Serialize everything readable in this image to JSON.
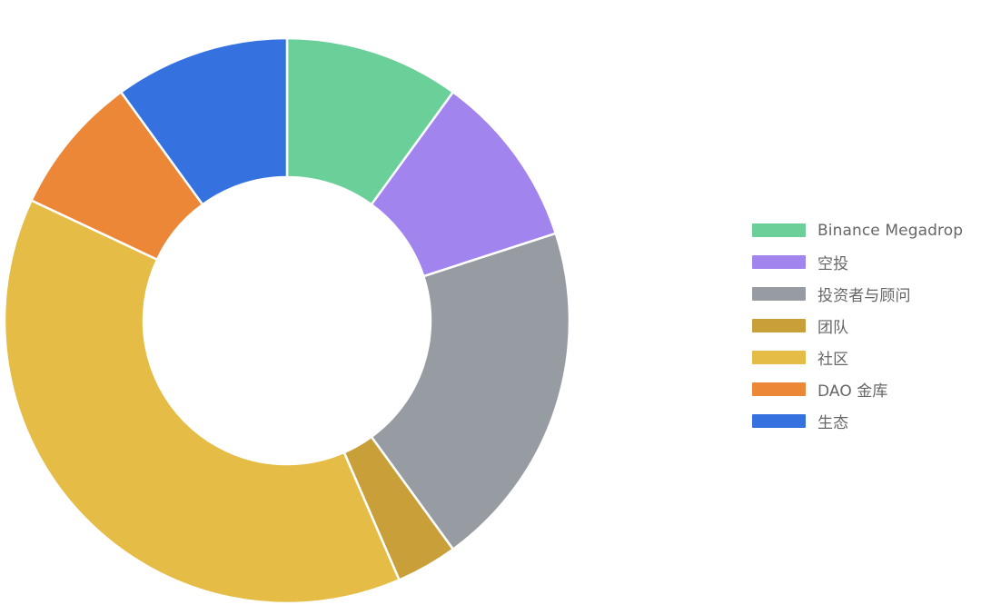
{
  "chart_data": {
    "type": "pie",
    "variant": "donut",
    "title": "",
    "legend_position": "right",
    "slices": [
      {
        "label": "Binance Megadrop",
        "value": 10,
        "color": "#6acf98"
      },
      {
        "label": "空投",
        "value": 10,
        "color": "#a284ef"
      },
      {
        "label": "投资者与顾问",
        "value": 20,
        "color": "#979ca3"
      },
      {
        "label": "团队",
        "value": 3.5,
        "color": "#c99f3a"
      },
      {
        "label": "社区",
        "value": 38.5,
        "color": "#e5bc45"
      },
      {
        "label": "DAO 金库",
        "value": 8,
        "color": "#ec8738"
      },
      {
        "label": "生态",
        "value": 10,
        "color": "#3572e0"
      }
    ]
  }
}
